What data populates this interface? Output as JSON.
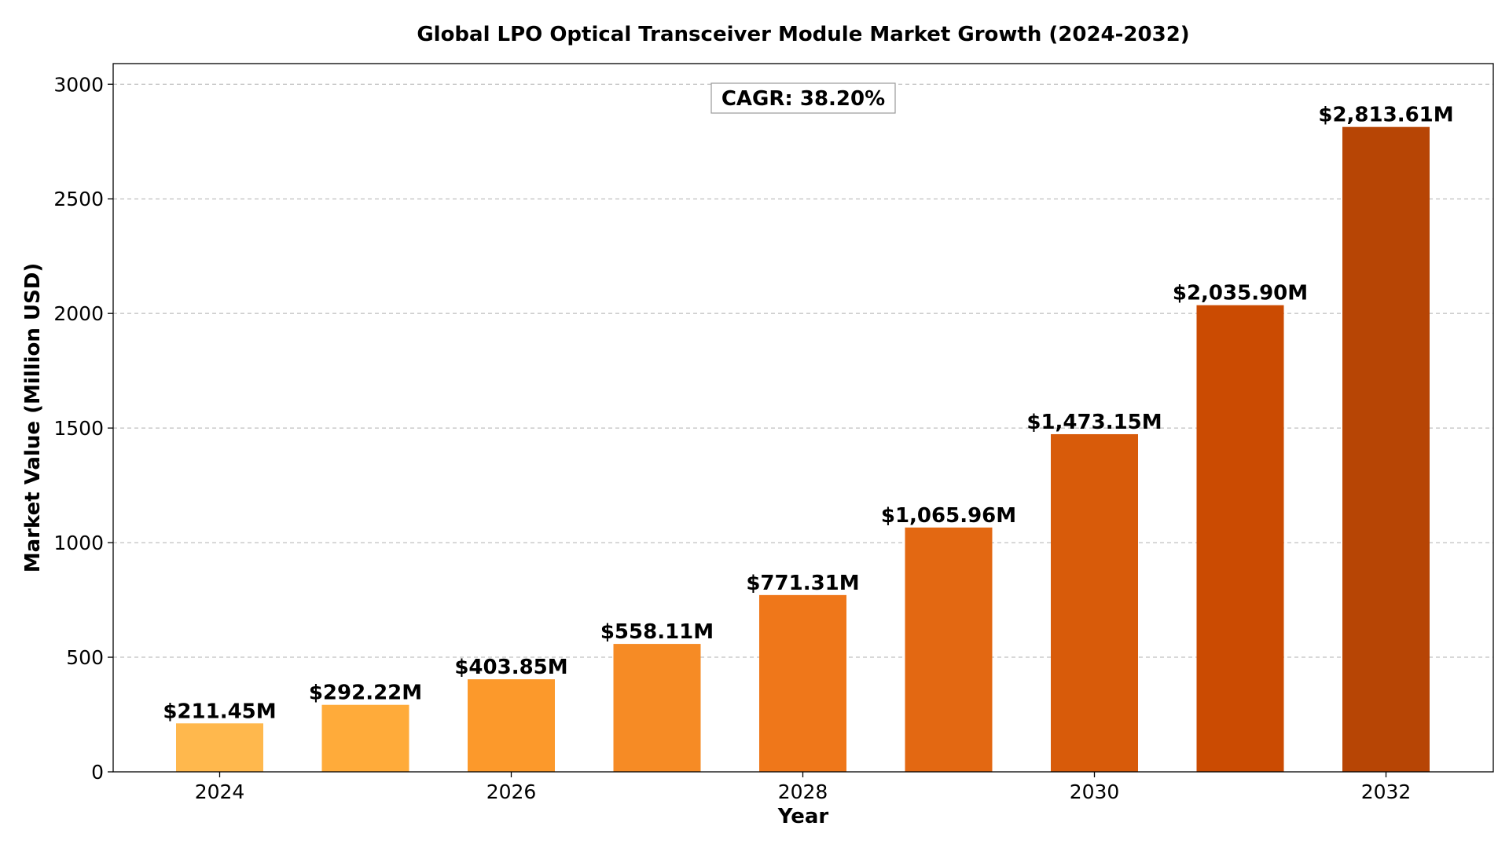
{
  "chart_data": {
    "type": "bar",
    "title": "Global LPO Optical Transceiver Module Market Growth (2024-2032)",
    "xlabel": "Year",
    "ylabel": "Market Value (Million USD)",
    "categories": [
      "2024",
      "2025",
      "2026",
      "2027",
      "2028",
      "2029",
      "2030",
      "2031",
      "2032"
    ],
    "values": [
      211.45,
      292.22,
      403.85,
      558.11,
      771.31,
      1065.96,
      1473.15,
      2035.9,
      2813.61
    ],
    "data_labels": [
      "$211.45M",
      "$292.22M",
      "$403.85M",
      "$558.11M",
      "$771.31M",
      "$1,065.96M",
      "$1,473.15M",
      "$2,035.90M",
      "$2,813.61M"
    ],
    "x_ticks": [
      "2024",
      "2026",
      "2028",
      "2030",
      "2032"
    ],
    "y_ticks": [
      0,
      500,
      1000,
      1500,
      2000,
      2500,
      3000
    ],
    "ylim": [
      0,
      3090
    ],
    "grid": true,
    "annotation": "CAGR: 38.20%",
    "colors": [
      "#ffb84d",
      "#ffab3a",
      "#fc992b",
      "#f68b25",
      "#ef771a",
      "#e36812",
      "#d85b0a",
      "#cb4b02",
      "#b74505"
    ]
  }
}
